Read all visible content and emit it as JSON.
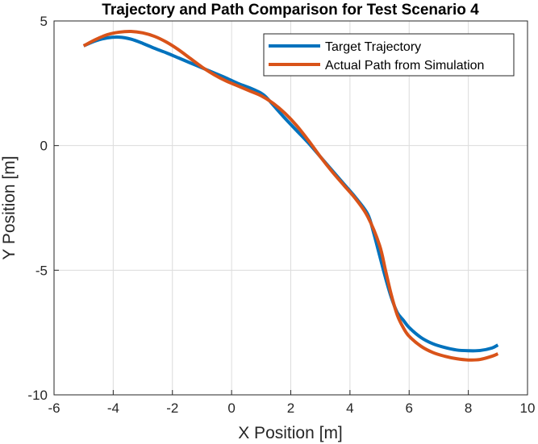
{
  "chart_data": {
    "type": "line",
    "title": "Trajectory and Path Comparison for Test Scenario 4",
    "xlabel": "X Position [m]",
    "ylabel": "Y Position [m]",
    "xlim": [
      -6,
      10
    ],
    "ylim": [
      -10,
      5
    ],
    "xticks": [
      -6,
      -4,
      -2,
      0,
      2,
      4,
      6,
      8,
      10
    ],
    "yticks": [
      -10,
      -5,
      0,
      5
    ],
    "xtick_labels": [
      "-6",
      "-4",
      "-2",
      "0",
      "2",
      "4",
      "6",
      "8",
      "10"
    ],
    "ytick_labels": [
      "-10",
      "-5",
      "0",
      "5"
    ],
    "grid": true,
    "legend_position": "top-right",
    "series": [
      {
        "name": "Target Trajectory",
        "color": "#0072BD",
        "x": [
          -5,
          -4.6,
          -4.2,
          -3.8,
          -3.4,
          -3.0,
          -2.6,
          -2.2,
          -1.8,
          -1.4,
          -1.0,
          -0.6,
          -0.2,
          0.2,
          0.6,
          1.0,
          1.2,
          1.5,
          1.8,
          2.2,
          2.6,
          3.0,
          3.4,
          3.8,
          4.2,
          4.6,
          4.8,
          5.0,
          5.2,
          5.4,
          5.6,
          5.8,
          6.0,
          6.4,
          6.8,
          7.2,
          7.6,
          8.0,
          8.4,
          8.8,
          9.0
        ],
        "y": [
          4.0,
          4.2,
          4.32,
          4.35,
          4.27,
          4.1,
          3.9,
          3.72,
          3.52,
          3.32,
          3.12,
          2.92,
          2.72,
          2.5,
          2.32,
          2.1,
          1.9,
          1.5,
          1.1,
          0.6,
          0.1,
          -0.45,
          -1.0,
          -1.55,
          -2.1,
          -2.75,
          -3.5,
          -4.4,
          -5.3,
          -6.1,
          -6.7,
          -7.0,
          -7.3,
          -7.7,
          -7.95,
          -8.1,
          -8.2,
          -8.23,
          -8.22,
          -8.12,
          -8.0
        ]
      },
      {
        "name": "Actual Path from Simulation",
        "color": "#D95319",
        "x": [
          -5,
          -4.6,
          -4.2,
          -3.8,
          -3.4,
          -3.0,
          -2.6,
          -2.2,
          -1.8,
          -1.4,
          -1.0,
          -0.6,
          -0.2,
          0.2,
          0.6,
          1.0,
          1.4,
          1.8,
          2.2,
          2.6,
          3.0,
          3.4,
          3.8,
          4.2,
          4.6,
          5.0,
          5.2,
          5.4,
          5.6,
          5.8,
          6.0,
          6.4,
          6.8,
          7.2,
          7.6,
          8.0,
          8.4,
          8.8,
          9.0
        ],
        "y": [
          4.0,
          4.25,
          4.45,
          4.55,
          4.58,
          4.52,
          4.38,
          4.15,
          3.85,
          3.5,
          3.15,
          2.85,
          2.6,
          2.4,
          2.2,
          2.0,
          1.7,
          1.3,
          0.8,
          0.2,
          -0.45,
          -1.05,
          -1.6,
          -2.15,
          -2.85,
          -4.0,
          -5.0,
          -6.0,
          -6.8,
          -7.3,
          -7.65,
          -8.05,
          -8.3,
          -8.45,
          -8.55,
          -8.6,
          -8.58,
          -8.45,
          -8.35
        ]
      }
    ]
  }
}
